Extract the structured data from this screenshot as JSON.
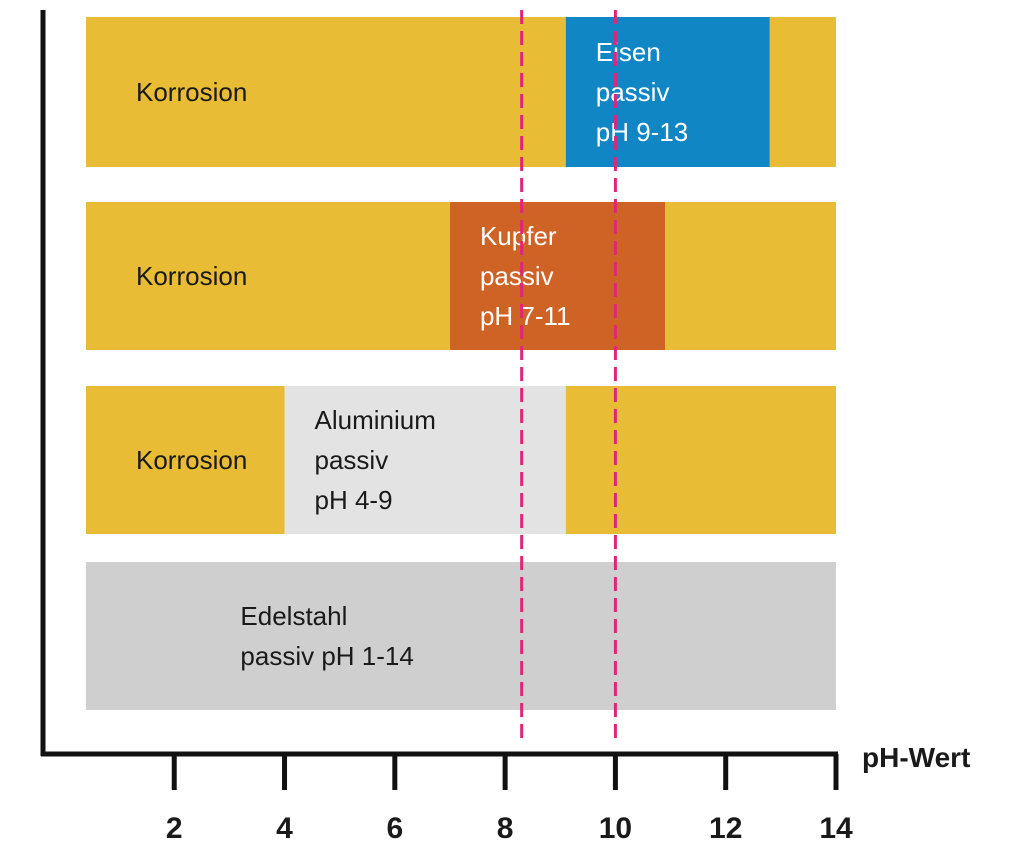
{
  "chart_data": {
    "type": "bar",
    "orientation": "horizontal-range",
    "xlabel": "pH-Wert",
    "xlim": [
      0.4,
      14
    ],
    "x_ticks": [
      2,
      4,
      6,
      8,
      10,
      12,
      14
    ],
    "x_tick_labels": [
      "2",
      "4",
      "6",
      "8",
      "10",
      "12",
      "14"
    ],
    "reference_lines": [
      {
        "x": 8.3,
        "style": "dashed",
        "color": "#e0267a"
      },
      {
        "x": 10,
        "style": "dashed",
        "color": "#e0267a"
      }
    ],
    "rows": [
      {
        "segments": [
          {
            "start": 0.4,
            "end": 9.1,
            "color": "#e8bd35",
            "lines": [
              "Korrosion"
            ],
            "text_color": "#1a1a1a"
          },
          {
            "start": 9.1,
            "end": 12.8,
            "color": "#1186c4",
            "lines": [
              "Eisen",
              "passiv",
              "pH 9-13"
            ],
            "text_color": "#ffffff"
          },
          {
            "start": 12.8,
            "end": 14,
            "color": "#e8bd35",
            "lines": [],
            "text_color": "#1a1a1a"
          }
        ]
      },
      {
        "segments": [
          {
            "start": 0.4,
            "end": 7.0,
            "color": "#e8bd35",
            "lines": [
              "Korrosion"
            ],
            "text_color": "#1a1a1a"
          },
          {
            "start": 7.0,
            "end": 10.9,
            "color": "#cf6225",
            "lines": [
              "Kupfer",
              "passiv",
              "pH 7-11"
            ],
            "text_color": "#ffffff"
          },
          {
            "start": 10.9,
            "end": 14,
            "color": "#e8bd35",
            "lines": [],
            "text_color": "#1a1a1a"
          }
        ]
      },
      {
        "segments": [
          {
            "start": 0.4,
            "end": 4.0,
            "color": "#e8bd35",
            "lines": [
              "Korrosion"
            ],
            "text_color": "#1a1a1a"
          },
          {
            "start": 4.0,
            "end": 9.1,
            "color": "#e3e3e3",
            "lines": [
              "Aluminium",
              "passiv",
              "pH 4-9"
            ],
            "text_color": "#1a1a1a"
          },
          {
            "start": 9.1,
            "end": 14,
            "color": "#e8bd35",
            "lines": [],
            "text_color": "#1a1a1a"
          }
        ]
      },
      {
        "segments": [
          {
            "start": 0.4,
            "end": 14,
            "color": "#cfcfcf",
            "lines": [
              "Edelstahl",
              "passiv pH 1-14"
            ],
            "text_color": "#1a1a1a"
          }
        ]
      }
    ]
  }
}
